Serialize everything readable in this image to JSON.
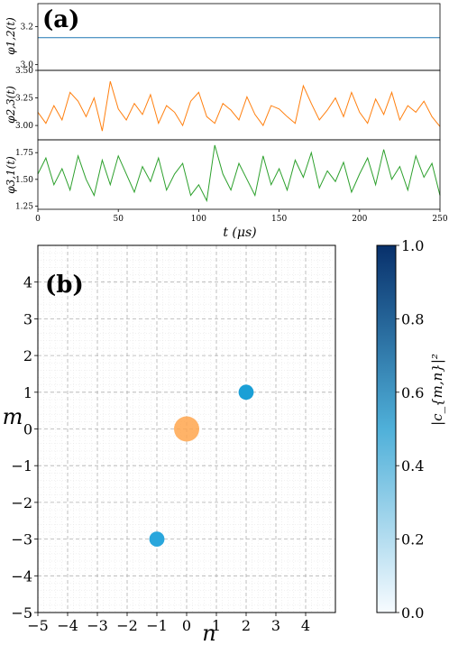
{
  "chart_data": [
    {
      "type": "line",
      "panel_label": "(a)",
      "xlabel": "t (μs)",
      "xlim": [
        0,
        250
      ],
      "x_ticks": [
        "0",
        "50",
        "100",
        "150",
        "200",
        "250"
      ],
      "subplots": [
        {
          "ylabel": "φ1,2(t)",
          "ylim": [
            2.97,
            3.32
          ],
          "y_ticks": [
            "3.0",
            "3.2"
          ],
          "y_tick_values": [
            3.0,
            3.2
          ],
          "color": "#1f77b4",
          "series": [
            {
              "x": [
                0,
                250
              ],
              "y": [
                3.1416,
                3.1416
              ]
            }
          ]
        },
        {
          "ylabel": "φ2,3(t)",
          "ylim": [
            2.87,
            3.5
          ],
          "y_ticks": [
            "3.00",
            "3.25",
            "3.50"
          ],
          "y_tick_values": [
            3.0,
            3.25,
            3.5
          ],
          "color": "#ff7f0e",
          "series": [
            {
              "x": [
                0,
                5,
                10,
                15,
                20,
                25,
                30,
                35,
                40,
                45,
                50,
                55,
                60,
                65,
                70,
                75,
                80,
                85,
                90,
                95,
                100,
                105,
                110,
                115,
                120,
                125,
                130,
                135,
                140,
                145,
                150,
                155,
                160,
                165,
                170,
                175,
                180,
                185,
                190,
                195,
                200,
                205,
                210,
                215,
                220,
                225,
                230,
                235,
                240,
                245,
                250
              ],
              "y": [
                3.12,
                3.02,
                3.18,
                3.05,
                3.3,
                3.22,
                3.08,
                3.25,
                2.95,
                3.4,
                3.15,
                3.05,
                3.2,
                3.1,
                3.28,
                3.02,
                3.18,
                3.12,
                3.0,
                3.22,
                3.3,
                3.08,
                3.02,
                3.2,
                3.14,
                3.05,
                3.26,
                3.1,
                3.0,
                3.18,
                3.15,
                3.08,
                3.02,
                3.36,
                3.2,
                3.05,
                3.14,
                3.25,
                3.08,
                3.3,
                3.12,
                3.02,
                3.24,
                3.1,
                3.3,
                3.05,
                3.18,
                3.12,
                3.22,
                3.08,
                2.99
              ]
            }
          ]
        },
        {
          "ylabel": "φ3,1(t)",
          "ylim": [
            1.22,
            1.87
          ],
          "y_ticks": [
            "1.25",
            "1.50",
            "1.75"
          ],
          "y_tick_values": [
            1.25,
            1.5,
            1.75
          ],
          "color": "#2ca02c",
          "series": [
            {
              "x": [
                0,
                5,
                10,
                15,
                20,
                25,
                30,
                35,
                40,
                45,
                50,
                55,
                60,
                65,
                70,
                75,
                80,
                85,
                90,
                95,
                100,
                105,
                110,
                115,
                120,
                125,
                130,
                135,
                140,
                145,
                150,
                155,
                160,
                165,
                170,
                175,
                180,
                185,
                190,
                195,
                200,
                205,
                210,
                215,
                220,
                225,
                230,
                235,
                240,
                245,
                250
              ],
              "y": [
                1.55,
                1.7,
                1.45,
                1.6,
                1.4,
                1.72,
                1.5,
                1.35,
                1.68,
                1.45,
                1.72,
                1.55,
                1.38,
                1.62,
                1.48,
                1.7,
                1.4,
                1.55,
                1.65,
                1.35,
                1.45,
                1.3,
                1.82,
                1.55,
                1.4,
                1.65,
                1.5,
                1.35,
                1.72,
                1.45,
                1.6,
                1.4,
                1.68,
                1.52,
                1.75,
                1.42,
                1.58,
                1.48,
                1.66,
                1.38,
                1.55,
                1.7,
                1.45,
                1.78,
                1.5,
                1.62,
                1.4,
                1.72,
                1.52,
                1.65,
                1.35
              ]
            }
          ]
        }
      ]
    },
    {
      "type": "scatter",
      "panel_label": "(b)",
      "xlabel": "n",
      "ylabel": "m",
      "xlim": [
        -5,
        5
      ],
      "ylim": [
        -5,
        5
      ],
      "x_ticks": [
        "−5",
        "−4",
        "−3",
        "−2",
        "−1",
        "0",
        "1",
        "2",
        "3",
        "4"
      ],
      "x_tick_values": [
        -5,
        -4,
        -3,
        -2,
        -1,
        0,
        1,
        2,
        3,
        4
      ],
      "y_ticks": [
        "−5",
        "−4",
        "−3",
        "−2",
        "−1",
        "0",
        "1",
        "2",
        "3",
        "4"
      ],
      "y_tick_values": [
        -5,
        -4,
        -3,
        -2,
        -1,
        0,
        1,
        2,
        3,
        4
      ],
      "grid": true,
      "points": [
        {
          "n": 0,
          "m": 0,
          "color": "#ffa64d",
          "relative_size": 1.0
        },
        {
          "n": 2,
          "m": 1,
          "color": "#1a9fd6",
          "relative_size": 0.6
        },
        {
          "n": -1,
          "m": -3,
          "color": "#29a6dc",
          "relative_size": 0.6
        }
      ],
      "colorbar": {
        "label": "|c_{m,n}|²",
        "range": [
          0,
          1
        ],
        "ticks": [
          "0.0",
          "0.2",
          "0.4",
          "0.6",
          "0.8",
          "1.0"
        ],
        "tick_values": [
          0,
          0.2,
          0.4,
          0.6,
          0.8,
          1.0
        ],
        "colors": [
          "#f7fbff",
          "#6baed6",
          "#08306b"
        ]
      }
    }
  ]
}
